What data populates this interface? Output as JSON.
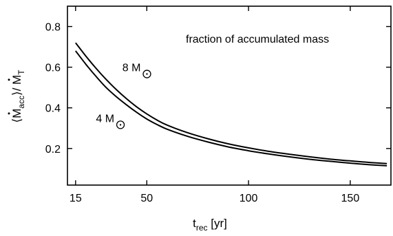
{
  "chart_data": {
    "type": "line",
    "title": "",
    "annotation": "fraction of accumulated mass",
    "xlabel": {
      "main": "t",
      "sub": "rec",
      "unit": " [yr]"
    },
    "ylabel": {
      "open": "⟨",
      "main": "M",
      "sub": "acc",
      "mid": "⟩/ ",
      "main2": "M",
      "sub2": "T"
    },
    "xlim": [
      11,
      170
    ],
    "ylim": [
      0.02,
      0.9
    ],
    "xticks": [
      15,
      50,
      100,
      150
    ],
    "xtick_labels": [
      "15",
      "50",
      "100",
      "150"
    ],
    "yticks": [
      0.2,
      0.4,
      0.6,
      0.8
    ],
    "ytick_labels": [
      "0.2",
      "0.4",
      "0.6",
      "0.8"
    ],
    "grid": false,
    "legend": "none",
    "series": [
      {
        "name": "8 M⊙",
        "x": [
          15,
          20,
          25,
          30,
          35,
          40,
          45,
          50,
          55,
          60,
          70,
          80,
          90,
          100,
          110,
          120,
          130,
          140,
          150,
          160,
          168
        ],
        "y": [
          0.72,
          0.655,
          0.595,
          0.54,
          0.49,
          0.445,
          0.405,
          0.37,
          0.34,
          0.315,
          0.278,
          0.248,
          0.223,
          0.203,
          0.186,
          0.172,
          0.159,
          0.148,
          0.139,
          0.131,
          0.126
        ]
      },
      {
        "name": "4 M⊙",
        "x": [
          15,
          20,
          25,
          30,
          35,
          40,
          45,
          50,
          55,
          60,
          70,
          80,
          90,
          100,
          110,
          120,
          130,
          140,
          150,
          160,
          168
        ],
        "y": [
          0.68,
          0.615,
          0.555,
          0.5,
          0.455,
          0.415,
          0.378,
          0.345,
          0.318,
          0.295,
          0.26,
          0.232,
          0.208,
          0.189,
          0.173,
          0.159,
          0.147,
          0.137,
          0.128,
          0.12,
          0.115
        ]
      }
    ],
    "labels": [
      {
        "series": "8 M⊙",
        "text": "8 M",
        "symbol": "⊙",
        "x": 38,
        "y": 0.58
      },
      {
        "series": "4 M⊙",
        "text": "4 M",
        "symbol": "⊙",
        "x": 25,
        "y": 0.33
      }
    ]
  }
}
